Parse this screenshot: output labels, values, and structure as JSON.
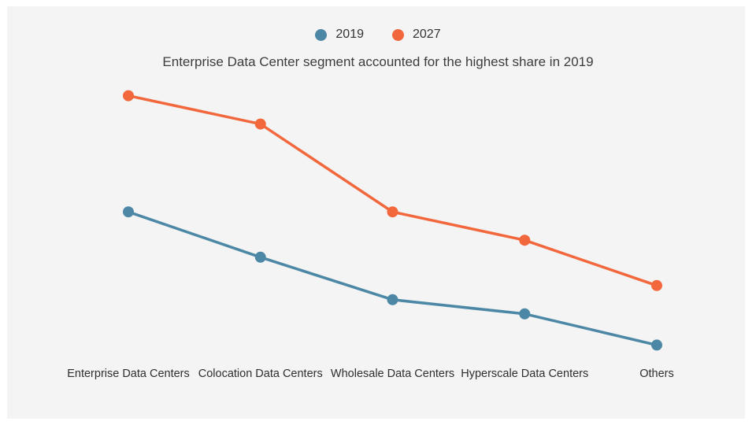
{
  "title": "Enterprise Data Center segment accounted for the highest share in 2019",
  "legend": {
    "items": [
      {
        "label": "2019",
        "color": "#4c87a6"
      },
      {
        "label": "2027",
        "color": "#f2673c"
      }
    ]
  },
  "colors": {
    "panel_background": "#f4f4f4",
    "page_background": "#ffffff",
    "title_text": "#3c3c3c",
    "axis_label_text": "#2e2e2e"
  },
  "chart_data": {
    "type": "line",
    "categories": [
      "Enterprise Data Centers",
      "Colocation Data Centers",
      "Wholesale Data Centers",
      "Hyperscale Data Centers",
      "Others"
    ],
    "series": [
      {
        "name": "2019",
        "color": "#4c87a6",
        "values": [
          53,
          37,
          22,
          17,
          6
        ]
      },
      {
        "name": "2027",
        "color": "#f2673c",
        "values": [
          94,
          84,
          53,
          43,
          27
        ]
      }
    ],
    "title": "Enterprise Data Center segment accounted for the highest share in 2019",
    "xlabel": "",
    "ylabel": "",
    "ylim": [
      0,
      100
    ],
    "grid": false,
    "axes_visible": false,
    "legend_position": "top-center",
    "marker": "circle",
    "units": "relative share (no axis shown)"
  }
}
